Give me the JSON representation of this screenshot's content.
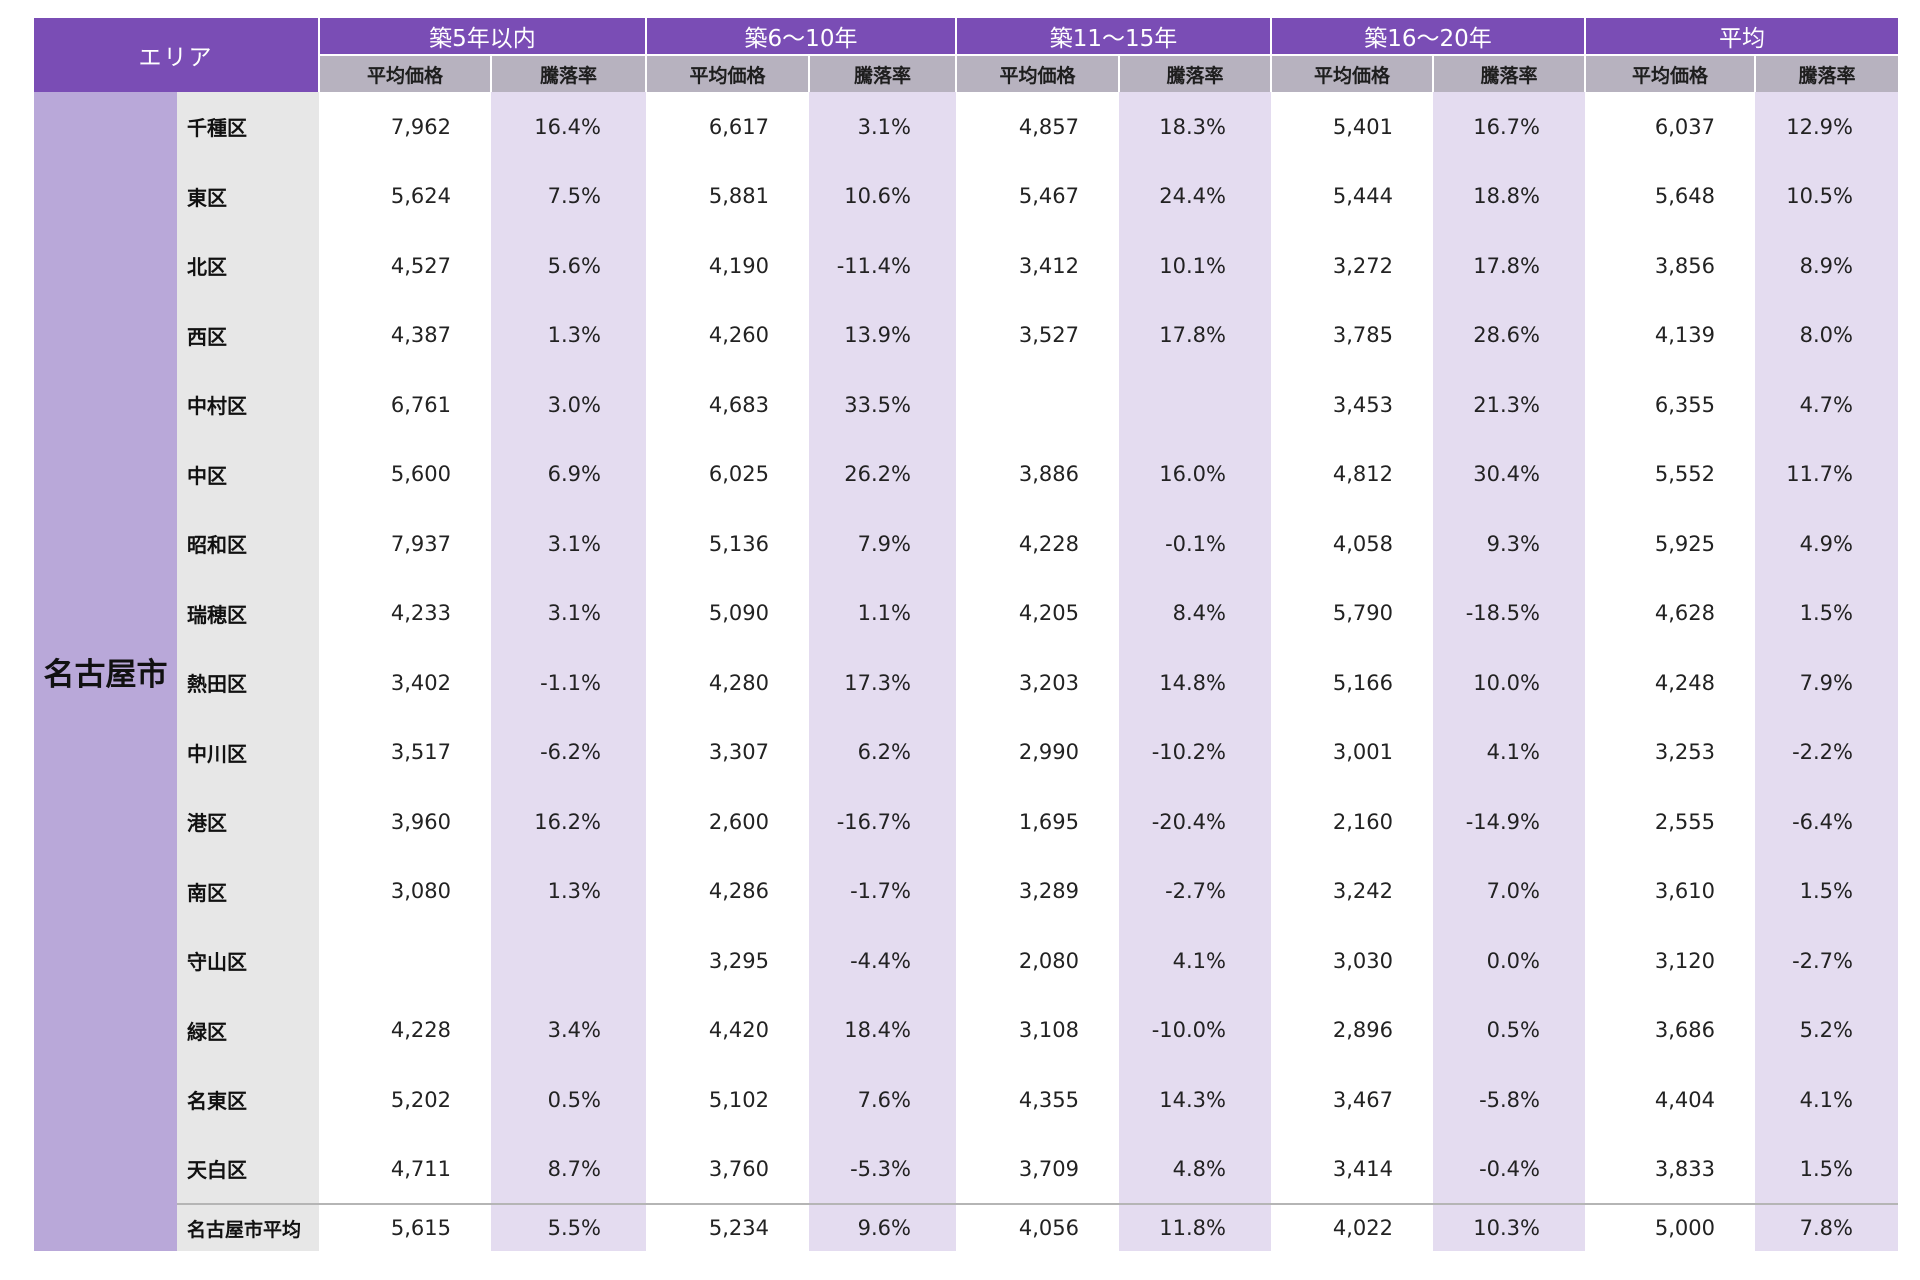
{
  "header": {
    "area": "エリア",
    "groups": [
      "築5年以内",
      "築6〜10年",
      "築11〜15年",
      "築16〜20年",
      "平均"
    ],
    "sub_price": "平均価格",
    "sub_rate": "騰落率"
  },
  "city": "名古屋市",
  "rows": [
    {
      "ward": "千種区",
      "cells": [
        "7,962",
        "16.4%",
        "6,617",
        "3.1%",
        "4,857",
        "18.3%",
        "5,401",
        "16.7%",
        "6,037",
        "12.9%"
      ]
    },
    {
      "ward": "東区",
      "cells": [
        "5,624",
        "7.5%",
        "5,881",
        "10.6%",
        "5,467",
        "24.4%",
        "5,444",
        "18.8%",
        "5,648",
        "10.5%"
      ]
    },
    {
      "ward": "北区",
      "cells": [
        "4,527",
        "5.6%",
        "4,190",
        "-11.4%",
        "3,412",
        "10.1%",
        "3,272",
        "17.8%",
        "3,856",
        "8.9%"
      ]
    },
    {
      "ward": "西区",
      "cells": [
        "4,387",
        "1.3%",
        "4,260",
        "13.9%",
        "3,527",
        "17.8%",
        "3,785",
        "28.6%",
        "4,139",
        "8.0%"
      ]
    },
    {
      "ward": "中村区",
      "cells": [
        "6,761",
        "3.0%",
        "4,683",
        "33.5%",
        "",
        "",
        "3,453",
        "21.3%",
        "6,355",
        "4.7%"
      ]
    },
    {
      "ward": "中区",
      "cells": [
        "5,600",
        "6.9%",
        "6,025",
        "26.2%",
        "3,886",
        "16.0%",
        "4,812",
        "30.4%",
        "5,552",
        "11.7%"
      ]
    },
    {
      "ward": "昭和区",
      "cells": [
        "7,937",
        "3.1%",
        "5,136",
        "7.9%",
        "4,228",
        "-0.1%",
        "4,058",
        "9.3%",
        "5,925",
        "4.9%"
      ]
    },
    {
      "ward": "瑞穂区",
      "cells": [
        "4,233",
        "3.1%",
        "5,090",
        "1.1%",
        "4,205",
        "8.4%",
        "5,790",
        "-18.5%",
        "4,628",
        "1.5%"
      ]
    },
    {
      "ward": "熱田区",
      "cells": [
        "3,402",
        "-1.1%",
        "4,280",
        "17.3%",
        "3,203",
        "14.8%",
        "5,166",
        "10.0%",
        "4,248",
        "7.9%"
      ]
    },
    {
      "ward": "中川区",
      "cells": [
        "3,517",
        "-6.2%",
        "3,307",
        "6.2%",
        "2,990",
        "-10.2%",
        "3,001",
        "4.1%",
        "3,253",
        "-2.2%"
      ]
    },
    {
      "ward": "港区",
      "cells": [
        "3,960",
        "16.2%",
        "2,600",
        "-16.7%",
        "1,695",
        "-20.4%",
        "2,160",
        "-14.9%",
        "2,555",
        "-6.4%"
      ]
    },
    {
      "ward": "南区",
      "cells": [
        "3,080",
        "1.3%",
        "4,286",
        "-1.7%",
        "3,289",
        "-2.7%",
        "3,242",
        "7.0%",
        "3,610",
        "1.5%"
      ]
    },
    {
      "ward": "守山区",
      "cells": [
        "",
        "",
        "3,295",
        "-4.4%",
        "2,080",
        "4.1%",
        "3,030",
        "0.0%",
        "3,120",
        "-2.7%"
      ]
    },
    {
      "ward": "緑区",
      "cells": [
        "4,228",
        "3.4%",
        "4,420",
        "18.4%",
        "3,108",
        "-10.0%",
        "2,896",
        "0.5%",
        "3,686",
        "5.2%"
      ]
    },
    {
      "ward": "名東区",
      "cells": [
        "5,202",
        "0.5%",
        "5,102",
        "7.6%",
        "4,355",
        "14.3%",
        "3,467",
        "-5.8%",
        "4,404",
        "4.1%"
      ]
    },
    {
      "ward": "天白区",
      "cells": [
        "4,711",
        "8.7%",
        "3,760",
        "-5.3%",
        "3,709",
        "4.8%",
        "3,414",
        "-0.4%",
        "3,833",
        "1.5%"
      ]
    }
  ],
  "total": {
    "ward": "名古屋市平均",
    "cells": [
      "5,615",
      "5.5%",
      "5,234",
      "9.6%",
      "4,056",
      "11.8%",
      "4,022",
      "10.3%",
      "5,000",
      "7.8%"
    ]
  }
}
